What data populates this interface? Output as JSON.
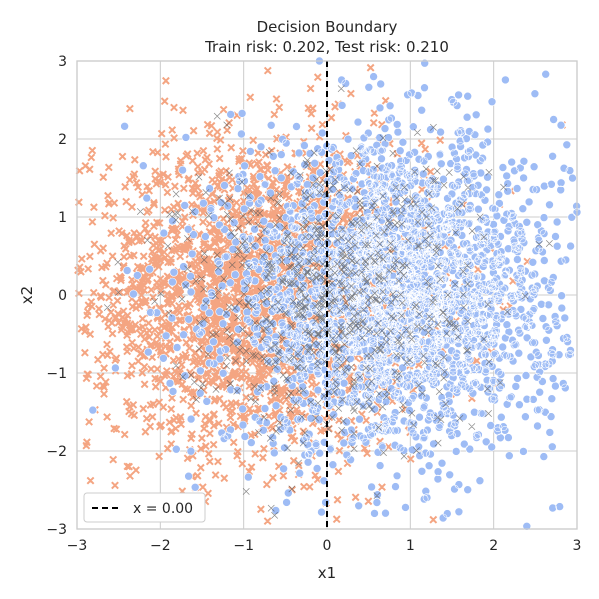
{
  "chart_data": {
    "type": "scatter",
    "title": "Decision Boundary",
    "subtitle": "Train risk: 0.202, Test risk: 0.210",
    "xlabel": "x1",
    "ylabel": "x2",
    "xlim": [
      -3,
      3
    ],
    "ylim": [
      -3,
      3
    ],
    "xticks": [
      -3,
      -2,
      -1,
      0,
      1,
      2,
      3
    ],
    "yticks": [
      -3,
      -2,
      -1,
      0,
      1,
      2,
      3
    ],
    "tick_labels_x": [
      "−3",
      "−2",
      "−1",
      "0",
      "1",
      "2",
      "3"
    ],
    "tick_labels_y": [
      "−3",
      "−2",
      "−1",
      "0",
      "1",
      "2",
      "3"
    ],
    "grid": true,
    "legend": {
      "position": "lower-left",
      "entries": [
        "x = 0.00"
      ]
    },
    "boundary": {
      "type": "vertical-dashed",
      "x": 0.0,
      "label": "x = 0.00",
      "color": "#000000"
    },
    "series": [
      {
        "marker": "x",
        "color": "#f4a582",
        "center": [
          -0.8,
          0.0
        ],
        "spread": 1.0,
        "count": 2600
      },
      {
        "marker": "circle",
        "color": "#9ebcf5",
        "center": [
          0.8,
          0.0
        ],
        "spread": 1.0,
        "count": 2600
      },
      {
        "marker": "x",
        "color": "#555555",
        "center": [
          0.0,
          0.0
        ],
        "spread": 0.9,
        "count": 700
      }
    ]
  }
}
